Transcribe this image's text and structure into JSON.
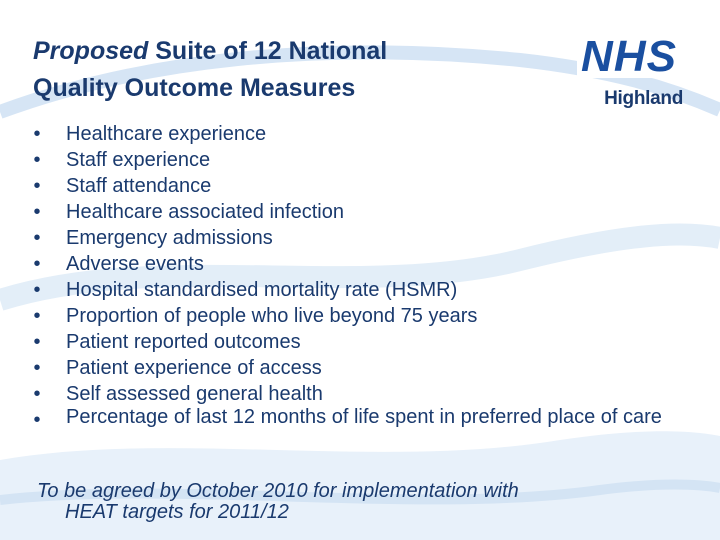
{
  "slide": {
    "title_emphasis": "Proposed",
    "title_rest_line1": " Suite of 12 National",
    "title_line2": "Quality Outcome Measures",
    "logo": {
      "brand": "NHS",
      "region": "Highland",
      "brand_color": "#1a4fa0"
    },
    "bullet_glyph": "•",
    "items": [
      "Healthcare experience",
      "Staff experience",
      "Staff attendance",
      "Healthcare associated infection",
      "Emergency admissions",
      "Adverse events",
      "Hospital standardised mortality rate (HSMR)",
      "Proportion of people who live beyond 75 years",
      "Patient reported outcomes",
      "Patient experience of access",
      "Self assessed general health",
      "Percentage of last 12 months of life spent in preferred place of care"
    ],
    "footnote_line1": "To be agreed by October 2010 for implementation with",
    "footnote_line2": "HEAT targets for 2011/12",
    "text_color": "#1a3a6e",
    "wave_color": "#cfe0f3"
  }
}
